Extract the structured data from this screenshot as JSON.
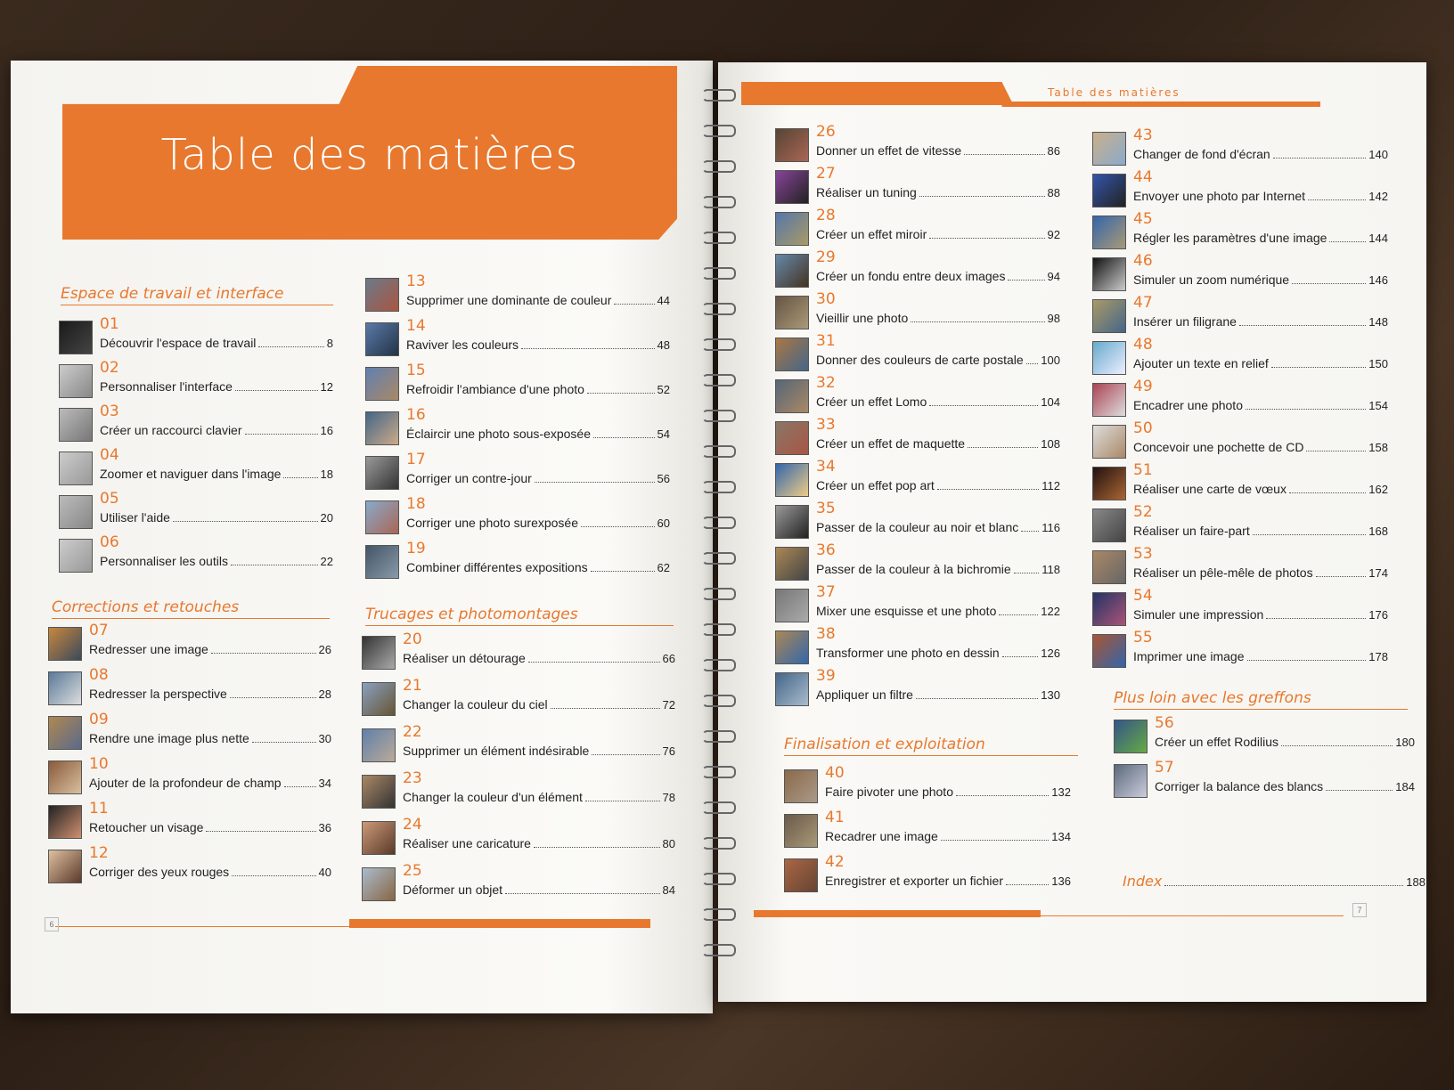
{
  "title": "Table des matières",
  "running_head": "Table des matières",
  "page_left": "6",
  "page_right": "7",
  "sections": {
    "s1": "Espace de travail et interface",
    "s2": "Corrections et retouches",
    "s3": "Trucages et photomontages",
    "s4": "Finalisation et exploitation",
    "s5": "Plus loin avec les greffons"
  },
  "entries": [
    {
      "n": "01",
      "t": "Découvrir l'espace de travail",
      "p": "8"
    },
    {
      "n": "02",
      "t": "Personnaliser l'interface",
      "p": "12"
    },
    {
      "n": "03",
      "t": "Créer un raccourci clavier",
      "p": "16"
    },
    {
      "n": "04",
      "t": "Zoomer et naviguer dans l'image",
      "p": "18"
    },
    {
      "n": "05",
      "t": "Utiliser l'aide",
      "p": "20"
    },
    {
      "n": "06",
      "t": "Personnaliser les outils",
      "p": "22"
    },
    {
      "n": "07",
      "t": "Redresser une image",
      "p": "26"
    },
    {
      "n": "08",
      "t": "Redresser la perspective",
      "p": "28"
    },
    {
      "n": "09",
      "t": "Rendre une image plus nette",
      "p": "30"
    },
    {
      "n": "10",
      "t": "Ajouter de la profondeur de champ",
      "p": "34"
    },
    {
      "n": "11",
      "t": "Retoucher un visage",
      "p": "36"
    },
    {
      "n": "12",
      "t": "Corriger des yeux rouges",
      "p": "40"
    },
    {
      "n": "13",
      "t": "Supprimer une dominante de couleur",
      "p": "44"
    },
    {
      "n": "14",
      "t": "Raviver les couleurs",
      "p": "48"
    },
    {
      "n": "15",
      "t": "Refroidir l'ambiance d'une photo",
      "p": "52"
    },
    {
      "n": "16",
      "t": "Éclaircir une photo sous-exposée",
      "p": "54"
    },
    {
      "n": "17",
      "t": "Corriger un contre-jour",
      "p": "56"
    },
    {
      "n": "18",
      "t": "Corriger une photo surexposée",
      "p": "60"
    },
    {
      "n": "19",
      "t": "Combiner différentes expositions",
      "p": "62"
    },
    {
      "n": "20",
      "t": "Réaliser un détourage",
      "p": "66"
    },
    {
      "n": "21",
      "t": "Changer la couleur du ciel",
      "p": "72"
    },
    {
      "n": "22",
      "t": "Supprimer un élément indésirable",
      "p": "76"
    },
    {
      "n": "23",
      "t": "Changer la couleur d'un élément",
      "p": "78"
    },
    {
      "n": "24",
      "t": "Réaliser une caricature",
      "p": "80"
    },
    {
      "n": "25",
      "t": "Déformer un objet",
      "p": "84"
    },
    {
      "n": "26",
      "t": "Donner un effet de vitesse",
      "p": "86"
    },
    {
      "n": "27",
      "t": "Réaliser un tuning",
      "p": "88"
    },
    {
      "n": "28",
      "t": "Créer un effet miroir",
      "p": "92"
    },
    {
      "n": "29",
      "t": "Créer un fondu entre deux images",
      "p": "94"
    },
    {
      "n": "30",
      "t": "Vieillir une photo",
      "p": "98"
    },
    {
      "n": "31",
      "t": "Donner des couleurs de carte postale",
      "p": "100"
    },
    {
      "n": "32",
      "t": "Créer un effet Lomo",
      "p": "104"
    },
    {
      "n": "33",
      "t": "Créer un effet de maquette",
      "p": "108"
    },
    {
      "n": "34",
      "t": "Créer un effet pop art",
      "p": "112"
    },
    {
      "n": "35",
      "t": "Passer de la couleur au noir et blanc",
      "p": "116"
    },
    {
      "n": "36",
      "t": "Passer de la couleur à la bichromie",
      "p": "118"
    },
    {
      "n": "37",
      "t": "Mixer une esquisse et une photo",
      "p": "122"
    },
    {
      "n": "38",
      "t": "Transformer une photo en dessin",
      "p": "126"
    },
    {
      "n": "39",
      "t": "Appliquer un filtre",
      "p": "130"
    },
    {
      "n": "40",
      "t": "Faire pivoter une photo",
      "p": "132"
    },
    {
      "n": "41",
      "t": "Recadrer une image",
      "p": "134"
    },
    {
      "n": "42",
      "t": "Enregistrer et exporter un fichier",
      "p": "136"
    },
    {
      "n": "43",
      "t": "Changer de fond d'écran",
      "p": "140"
    },
    {
      "n": "44",
      "t": "Envoyer une photo par Internet",
      "p": "142"
    },
    {
      "n": "45",
      "t": "Régler les paramètres d'une image",
      "p": "144"
    },
    {
      "n": "46",
      "t": "Simuler un zoom numérique",
      "p": "146"
    },
    {
      "n": "47",
      "t": "Insérer un filigrane",
      "p": "148"
    },
    {
      "n": "48",
      "t": "Ajouter un texte en relief",
      "p": "150"
    },
    {
      "n": "49",
      "t": "Encadrer une photo",
      "p": "154"
    },
    {
      "n": "50",
      "t": "Concevoir une pochette de CD",
      "p": "158"
    },
    {
      "n": "51",
      "t": "Réaliser une carte de vœux",
      "p": "162"
    },
    {
      "n": "52",
      "t": "Réaliser un faire-part",
      "p": "168"
    },
    {
      "n": "53",
      "t": "Réaliser un pêle-mêle de photos",
      "p": "174"
    },
    {
      "n": "54",
      "t": "Simuler une impression",
      "p": "176"
    },
    {
      "n": "55",
      "t": "Imprimer une image",
      "p": "178"
    },
    {
      "n": "56",
      "t": "Créer un effet Rodilius",
      "p": "180"
    },
    {
      "n": "57",
      "t": "Corriger la balance des blancs",
      "p": "184"
    }
  ],
  "index": {
    "t": "Index",
    "p": "188"
  },
  "colors": {
    "accent": "#e8782e",
    "paper": "#f7f6f2",
    "background": "#2e2016"
  }
}
